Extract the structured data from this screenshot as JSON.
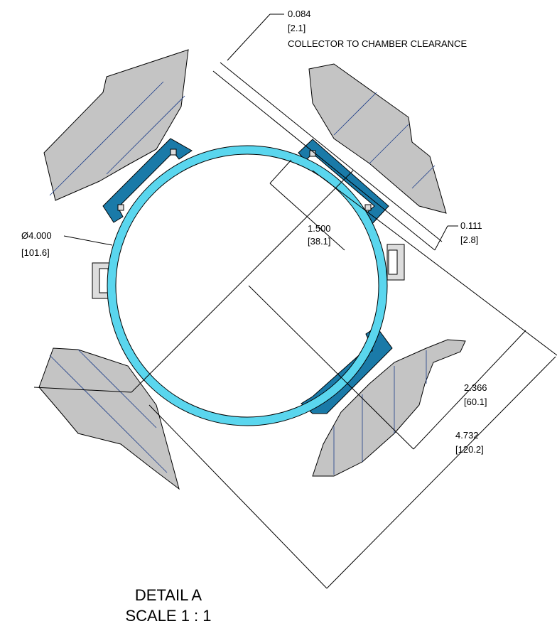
{
  "dimensions": {
    "clearance": {
      "value": "0.084",
      "metric": "[2.1]",
      "note": "COLLECTOR TO CHAMBER CLEARANCE"
    },
    "gap": {
      "value": "0.111",
      "metric": "[2.8]"
    },
    "offset": {
      "value": "1.500",
      "metric": "[38.1]"
    },
    "diameter": {
      "value": "Ø4.000",
      "metric": "[101.6]"
    },
    "half_span": {
      "value": "2.366",
      "metric": "[60.1]"
    },
    "span": {
      "value": "4.732",
      "metric": "[120.2]"
    }
  },
  "detail": {
    "title": "DETAIL A",
    "scale": "SCALE 1 : 1"
  }
}
